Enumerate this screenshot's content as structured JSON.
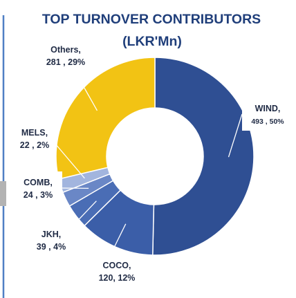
{
  "chart_data": {
    "type": "pie",
    "title": "TOP TURNOVER CONTRIBUTORS",
    "subtitle": "(LKR'Mn)",
    "series": [
      {
        "name": "WIND",
        "value": 493,
        "percent": "50%",
        "label_line1": "WIND,",
        "label_line2": "493 , 50%",
        "color": "#2f4f93"
      },
      {
        "name": "COCO",
        "value": 120,
        "percent": "12%",
        "label_line1": "COCO,",
        "label_line2": "120, 12%",
        "color": "#3b5ea8"
      },
      {
        "name": "JKH",
        "value": 39,
        "percent": "4%",
        "label_line1": "JKH,",
        "label_line2": "39 , 4%",
        "color": "#4a6db5"
      },
      {
        "name": "COMB",
        "value": 24,
        "percent": "3%",
        "label_line1": "COMB,",
        "label_line2": "24 , 3%",
        "color": "#6a87c6"
      },
      {
        "name": "MELS",
        "value": 22,
        "percent": "2%",
        "label_line1": "MELS,",
        "label_line2": "22 , 2%",
        "color": "#a2b5de"
      },
      {
        "name": "Others",
        "value": 281,
        "percent": "29%",
        "label_line1": "Others,",
        "label_line2": "281 , 29%",
        "color": "#f2c314"
      }
    ]
  }
}
